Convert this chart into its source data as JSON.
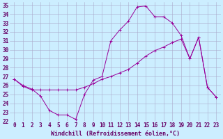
{
  "xlabel": "Windchill (Refroidissement éolien,°C)",
  "bg_color": "#cceeff",
  "line_color": "#990099",
  "grid_color": "#aaaacc",
  "xlim": [
    -0.5,
    23.5
  ],
  "ylim": [
    22,
    35.3
  ],
  "xticks": [
    0,
    1,
    2,
    3,
    4,
    5,
    6,
    7,
    8,
    9,
    10,
    11,
    12,
    13,
    14,
    15,
    16,
    17,
    18,
    19,
    20,
    21,
    22,
    23
  ],
  "yticks": [
    22,
    23,
    24,
    25,
    26,
    27,
    28,
    29,
    30,
    31,
    32,
    33,
    34,
    35
  ],
  "line1_x": [
    0,
    1,
    2,
    3,
    4,
    5,
    6,
    7,
    8,
    9,
    10,
    11,
    12,
    13,
    14,
    15,
    16,
    17,
    18,
    19,
    20,
    21,
    22,
    23
  ],
  "line1_y": [
    26.7,
    26.0,
    25.6,
    24.8,
    23.2,
    22.7,
    22.7,
    22.2,
    25.0,
    26.6,
    27.0,
    31.0,
    32.2,
    33.2,
    34.8,
    34.9,
    33.7,
    33.7,
    33.0,
    31.6,
    29.0,
    31.4,
    25.8,
    24.7
  ],
  "line2_x": [
    0,
    1,
    2,
    3,
    4,
    5,
    6,
    7,
    8,
    9,
    10,
    11,
    12,
    13,
    14,
    15,
    16,
    17,
    18,
    19,
    20,
    21,
    22,
    23
  ],
  "line2_y": [
    26.7,
    25.9,
    25.5,
    25.5,
    25.5,
    25.5,
    25.5,
    25.5,
    25.8,
    26.2,
    26.7,
    27.0,
    27.4,
    27.8,
    28.5,
    29.3,
    29.9,
    30.3,
    30.8,
    31.2,
    29.0,
    31.4,
    25.8,
    24.7
  ],
  "xlabel_fontsize": 6,
  "tick_fontsize": 5.5,
  "tick_color": "#660066",
  "xlabel_color": "#660066"
}
